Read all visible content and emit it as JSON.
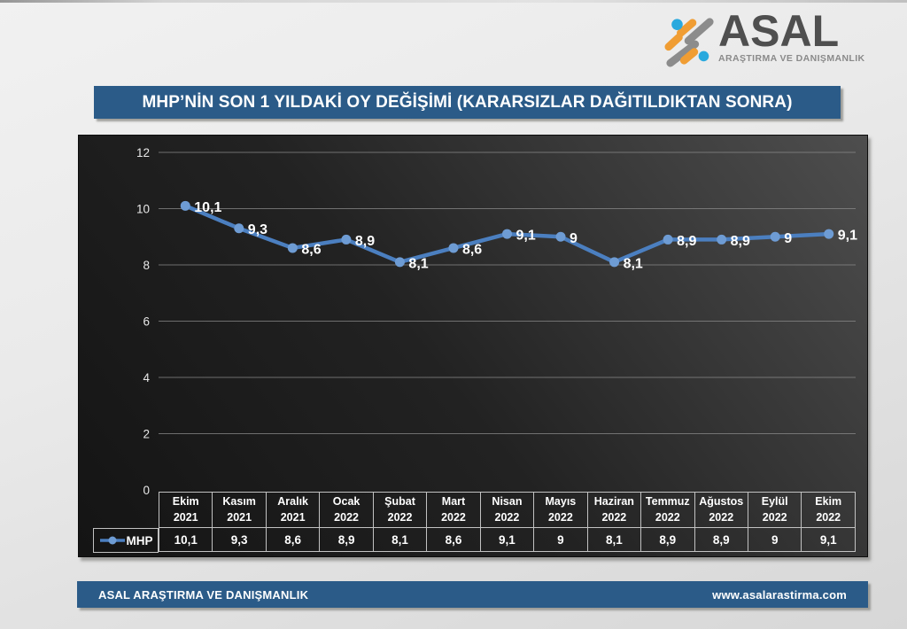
{
  "logo": {
    "name": "ASAL",
    "tagline": "ARAŞTIRMA VE DANIŞMANLIK"
  },
  "title_bar": {
    "text": "MHP’NİN SON 1 YILDAKİ OY DEĞİŞİMİ  (KARARSIZLAR DAĞITILDIKTAN SONRA)"
  },
  "footer": {
    "left": "ASAL ARAŞTIRMA VE DANIŞMANLIK",
    "right": "www.asalarastirma.com"
  },
  "legend": {
    "label": "MHP"
  },
  "colors": {
    "bar_blue": "#2b5b88",
    "line_blue": "#4b7fc0",
    "marker_blue": "#6e9cd4",
    "grid_gray": "#8a8a8a",
    "table_border": "#c2c2c2",
    "logo_orange": "#f09d33",
    "logo_gray": "#8c8c8c",
    "logo_blue": "#29a9de"
  },
  "chart_data": {
    "type": "line",
    "title": "MHP’NİN SON 1 YILDAKİ OY DEĞİŞİMİ (KARARSIZLAR DAĞITILDIKTAN SONRA)",
    "categories": [
      "Ekim 2021",
      "Kasım 2021",
      "Aralık 2021",
      "Ocak 2022",
      "Şubat 2022",
      "Mart 2022",
      "Nisan 2022",
      "Mayıs 2022",
      "Haziran 2022",
      "Temmuz 2022",
      "Ağustos 2022",
      "Eylül 2022",
      "Ekim 2022"
    ],
    "series": [
      {
        "name": "MHP",
        "values": [
          10.1,
          9.3,
          8.6,
          8.9,
          8.1,
          8.6,
          9.1,
          9,
          8.1,
          8.9,
          8.9,
          9,
          9.1
        ],
        "labels": [
          "10,1",
          "9,3",
          "8,6",
          "8,9",
          "8,1",
          "8,6",
          "9,1",
          "9",
          "8,1",
          "8,9",
          "8,9",
          "9",
          "9,1"
        ]
      }
    ],
    "xlabel": "",
    "ylabel": "",
    "ylim": [
      0,
      12
    ],
    "y_ticks": [
      0,
      2,
      4,
      6,
      8,
      10,
      12
    ],
    "grid": true,
    "legend_position": "bottom-left"
  }
}
